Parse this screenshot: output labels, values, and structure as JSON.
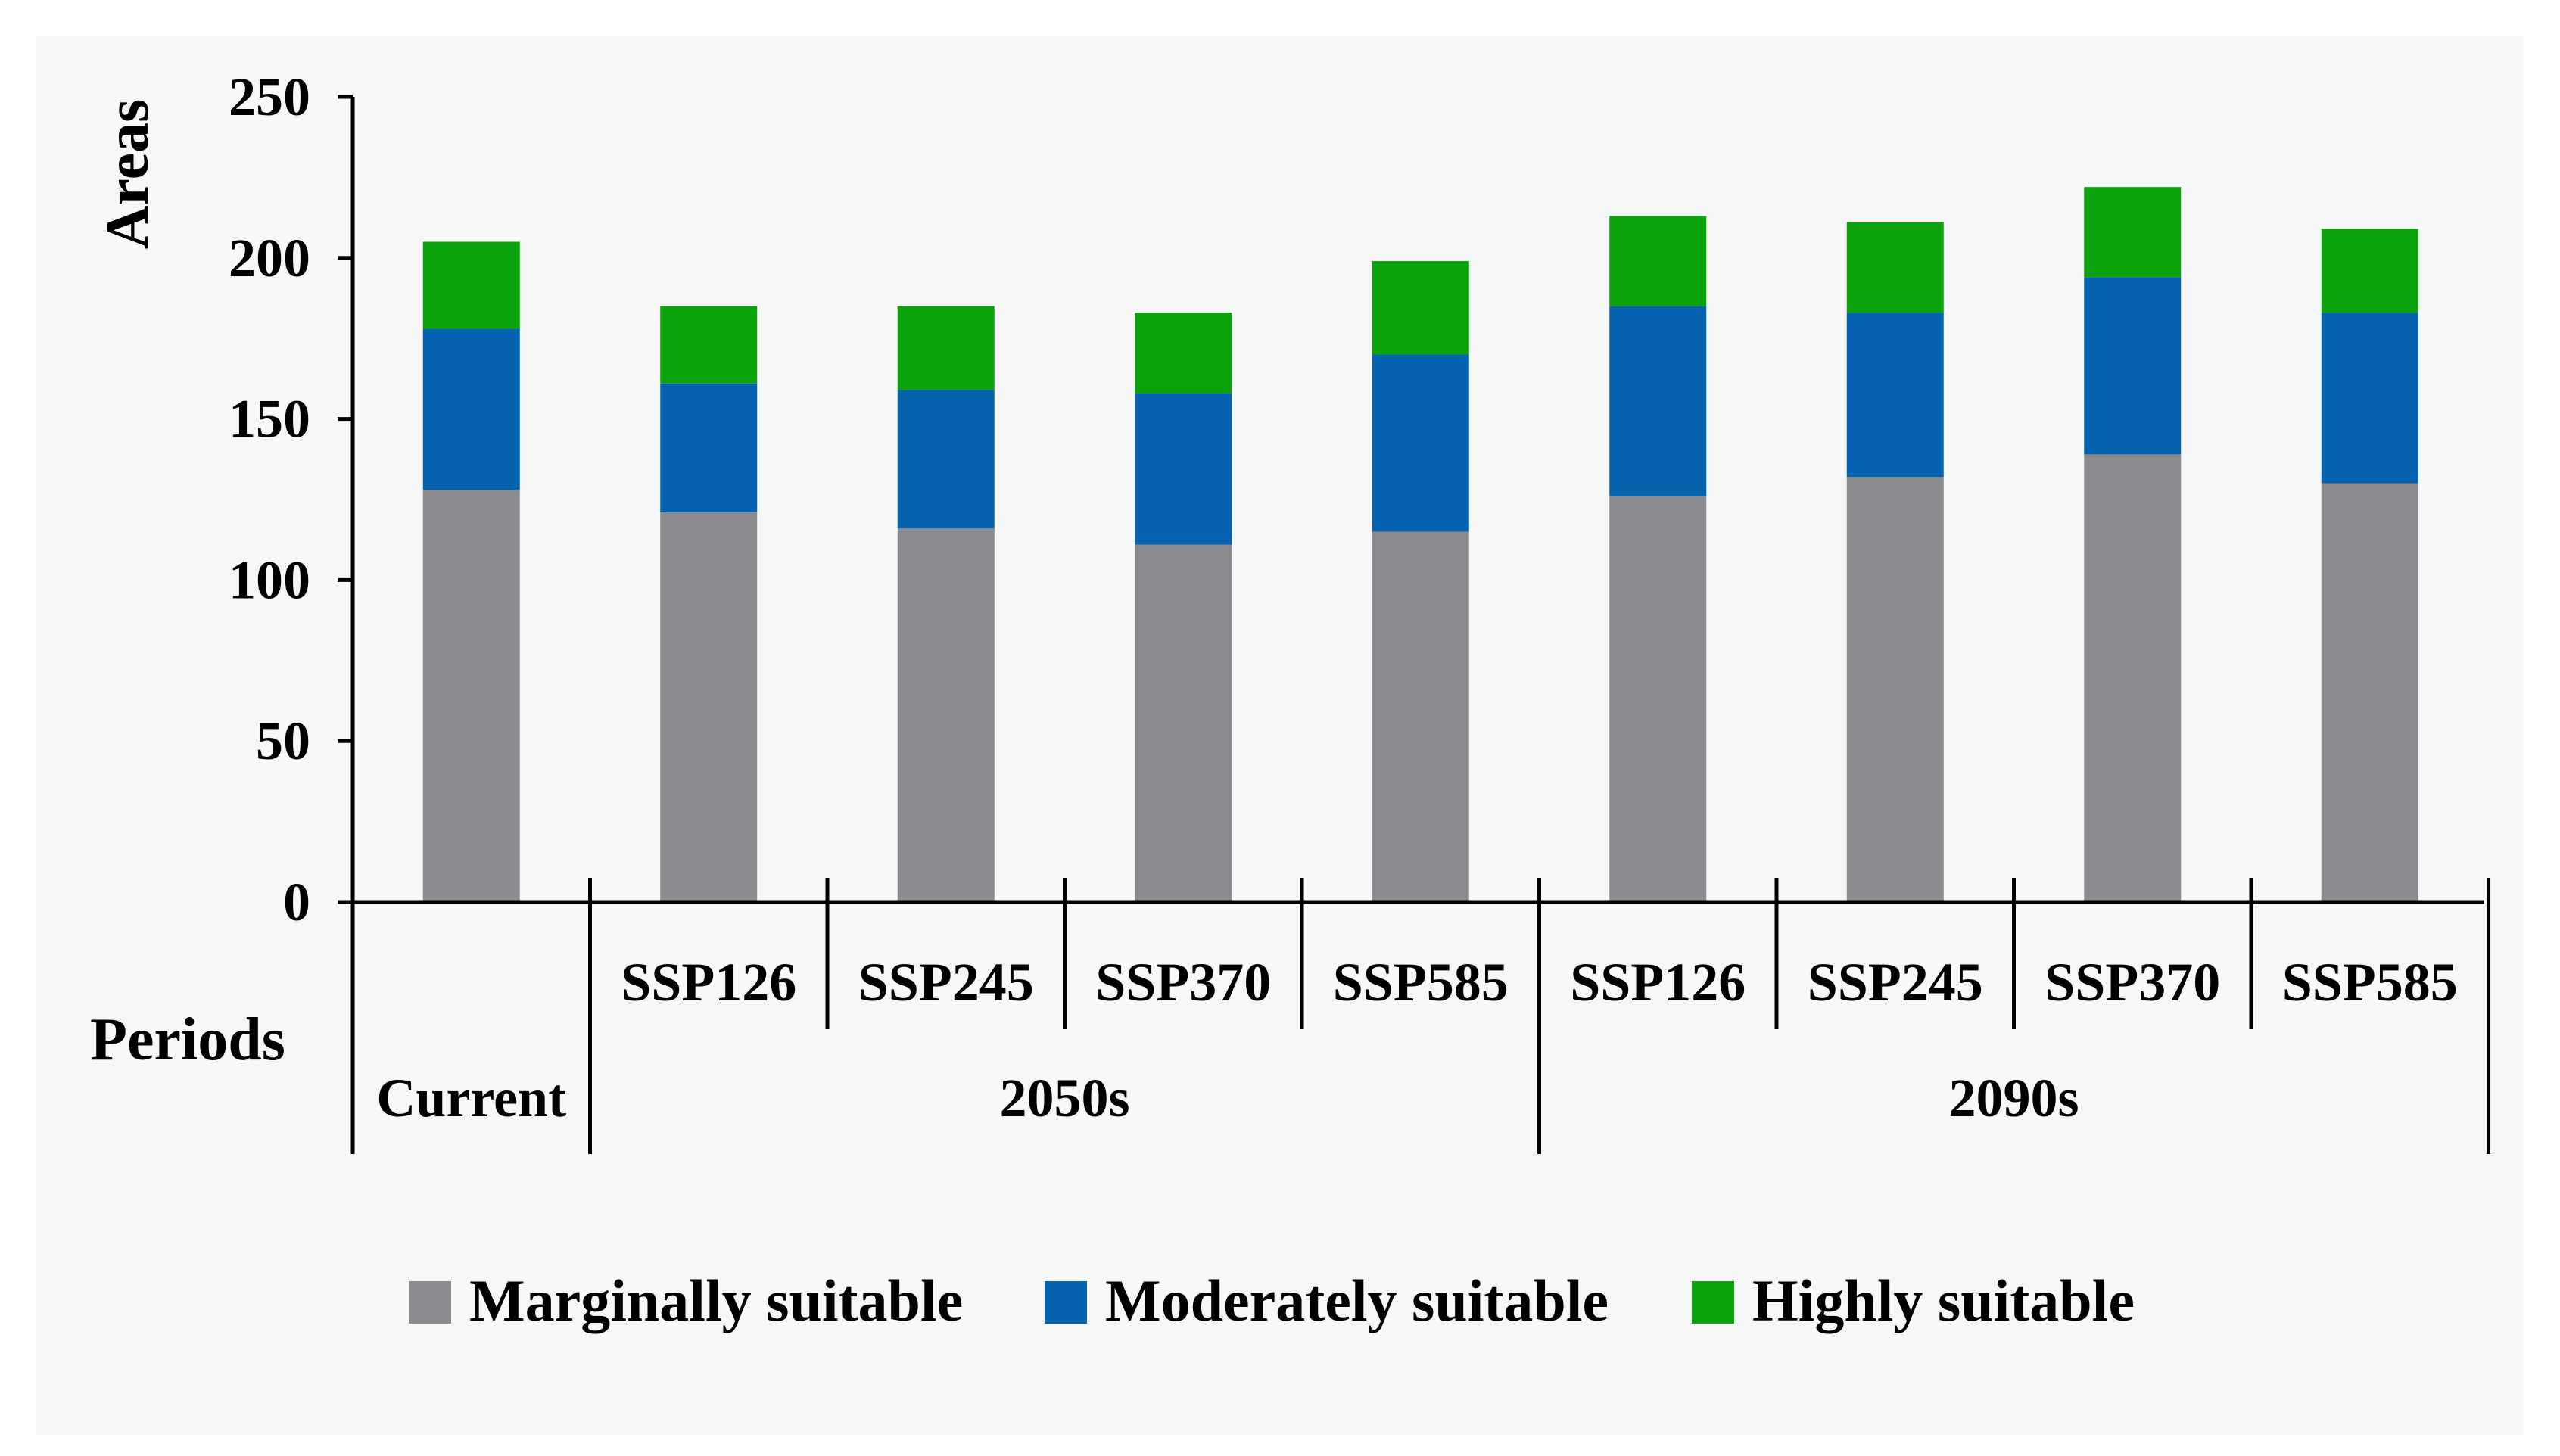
{
  "chart_data": {
    "type": "bar",
    "stacked": true,
    "ylabel": "Areas",
    "xlabel": "Periods",
    "ylim": [
      0,
      250
    ],
    "yticks": [
      0,
      50,
      100,
      150,
      200,
      250
    ],
    "grid": false,
    "legend_position": "bottom",
    "categories": [
      "Current",
      "SSP126",
      "SSP245",
      "SSP370",
      "SSP585",
      "SSP126",
      "SSP245",
      "SSP370",
      "SSP585"
    ],
    "groups": [
      {
        "label": "Current",
        "span": [
          0,
          0
        ]
      },
      {
        "label": "2050s",
        "span": [
          1,
          4
        ]
      },
      {
        "label": "2090s",
        "span": [
          5,
          8
        ]
      }
    ],
    "series": [
      {
        "name": "Marginally suitable",
        "color": "#898b8e",
        "values": [
          128,
          121,
          116,
          111,
          115,
          126,
          132,
          139,
          130
        ]
      },
      {
        "name": "Moderately suitable",
        "color": "#0562ae",
        "values": [
          50,
          40,
          43,
          47,
          55,
          59,
          51,
          55,
          53
        ]
      },
      {
        "name": "Highly suitable",
        "color": "#0ba20b",
        "values": [
          27,
          24,
          26,
          25,
          29,
          28,
          28,
          28,
          26
        ]
      }
    ]
  }
}
